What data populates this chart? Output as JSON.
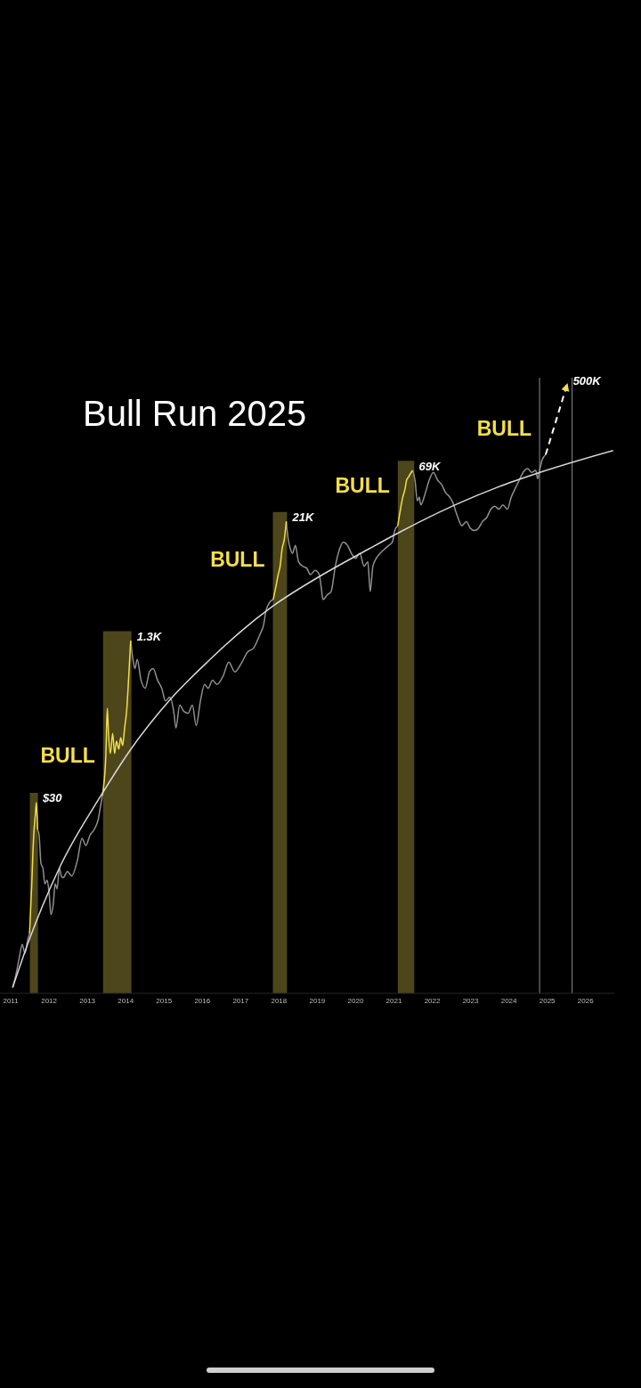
{
  "chart_data": {
    "type": "line",
    "title": "Bull Run 2025",
    "xlim": [
      2010.72,
      2026.75
    ],
    "xticks": [
      2011,
      2012,
      2013,
      2014,
      2015,
      2016,
      2017,
      2018,
      2019,
      2020,
      2021,
      2022,
      2023,
      2024,
      2025,
      2026
    ],
    "ylim": [
      0.35,
      600000
    ],
    "log": true,
    "tick_labels": "x",
    "series": [
      {
        "color": "#8f8f8f",
        "x": [
          2011.05,
          2011.14,
          2011.23,
          2011.3,
          2011.37,
          2011.44,
          2011.49,
          2011.6,
          2011.7,
          2011.74,
          2011.79,
          2011.84,
          2011.89,
          2011.95,
          2012,
          2012.05,
          2012.11,
          2012.16,
          2012.21,
          2012.27,
          2012.32,
          2012.37,
          2012.48,
          2012.59,
          2012.74,
          2012.86,
          2012.96,
          2013.07,
          2013.18,
          2013.28,
          2013.34,
          2013.39,
          2013.7,
          2014.13,
          2014.19,
          2014.24,
          2014.3,
          2014.4,
          2014.51,
          2014.62,
          2014.72,
          2014.83,
          2014.94,
          2015.04,
          2015.15,
          2015.26,
          2015.31,
          2015.41,
          2015.52,
          2015.63,
          2015.74,
          2015.84,
          2015.95,
          2016.06,
          2016.15,
          2016.27,
          2016.38,
          2016.54,
          2016.69,
          2016.85,
          2017.01,
          2017.18,
          2017.34,
          2017.5,
          2017.6,
          2017.66,
          2017.76,
          2017.85,
          2018,
          2018.19,
          2018.24,
          2018.3,
          2018.35,
          2018.43,
          2018.51,
          2018.62,
          2018.72,
          2018.82,
          2018.94,
          2019.05,
          2019.1,
          2019.15,
          2019.26,
          2019.36,
          2019.47,
          2019.58,
          2019.68,
          2019.79,
          2019.89,
          2020,
          2020.11,
          2020.22,
          2020.32,
          2020.38,
          2020.45,
          2020.54,
          2020.64,
          2020.75,
          2020.86,
          2020.96,
          2021.02,
          2021.1,
          2021.3,
          2021.49,
          2021.55,
          2021.61,
          2021.66,
          2021.7,
          2021.82,
          2021.92,
          2022.03,
          2022.14,
          2022.24,
          2022.35,
          2022.46,
          2022.56,
          2022.62,
          2022.67,
          2022.77,
          2022.89,
          2022.99,
          2023.1,
          2023.21,
          2023.31,
          2023.42,
          2023.53,
          2023.63,
          2023.74,
          2023.84,
          2023.96,
          2024.06,
          2024.16,
          2024.27,
          2024.37,
          2024.49,
          2024.59,
          2024.7,
          2024.75,
          2024.81,
          2024.86,
          2024.96
        ],
        "values": [
          0.4,
          0.55,
          0.83,
          1.1,
          0.89,
          1.2,
          1.4,
          null,
          16,
          14,
          7.2,
          6.5,
          4.5,
          4.9,
          3.7,
          2.2,
          2.8,
          4.5,
          4,
          6.5,
          5.4,
          5.2,
          6,
          5.4,
          7.8,
          13,
          11,
          14,
          16,
          20,
          27,
          35,
          null,
          1300,
          840,
          680,
          840,
          520,
          430,
          630,
          680,
          520,
          430,
          320,
          350,
          240,
          170,
          290,
          250,
          240,
          290,
          180,
          320,
          470,
          430,
          520,
          470,
          570,
          790,
          630,
          760,
          1000,
          1100,
          1500,
          1900,
          2600,
          3200,
          3400,
          null,
          21000,
          14000,
          11000,
          10000,
          12000,
          8200,
          7400,
          7100,
          6100,
          6700,
          6100,
          4600,
          3400,
          3800,
          4100,
          7400,
          11000,
          13000,
          12000,
          10000,
          8900,
          10000,
          7400,
          8200,
          4100,
          7400,
          8900,
          10000,
          11000,
          12000,
          13000,
          17000,
          19000,
          null,
          69000,
          55000,
          34000,
          37000,
          31000,
          41000,
          55000,
          66000,
          55000,
          50000,
          41000,
          37000,
          31000,
          26000,
          23000,
          19000,
          21000,
          18000,
          17000,
          18000,
          21000,
          23000,
          28000,
          30000,
          28000,
          31000,
          28000,
          37000,
          45000,
          55000,
          66000,
          72000,
          66000,
          69000,
          57000,
          72000,
          87000,
          100000
        ]
      },
      {
        "color": "#f3df4a",
        "x": [
          2011.49,
          2011.55,
          2011.58,
          2011.6,
          2011.64,
          2011.67,
          2011.7,
          2012.5,
          2013.39,
          2013.48,
          2013.52,
          2013.55,
          2013.6,
          2013.66,
          2013.71,
          2013.76,
          2013.82,
          2013.87,
          2013.92,
          2013.97,
          2014.03,
          2014.08,
          2014.13,
          2016,
          2017.85,
          2017.92,
          2017.98,
          2018.03,
          2018.08,
          2018.14,
          2018.19,
          2020,
          2021.1,
          2021.17,
          2021.23,
          2021.29,
          2021.33,
          2021.39,
          2021.45,
          2021.49
        ],
        "values": [
          1.4,
          4.5,
          9.6,
          14,
          22,
          30,
          16,
          null,
          35,
          85,
          270,
          150,
          94,
          150,
          94,
          125,
          104,
          136,
          113,
          167,
          270,
          570,
          1300,
          null,
          3400,
          4600,
          6100,
          7400,
          11000,
          14000,
          21000,
          null,
          19000,
          28000,
          37000,
          45000,
          55000,
          60000,
          66000,
          69000
        ],
        "value_labels": [
          null,
          null,
          null,
          null,
          null,
          "$30",
          null,
          null,
          null,
          null,
          null,
          null,
          null,
          null,
          null,
          null,
          null,
          null,
          null,
          null,
          null,
          null,
          "1.3K",
          null,
          null,
          null,
          null,
          null,
          null,
          null,
          "21K",
          null,
          null,
          null,
          null,
          null,
          null,
          null,
          null,
          "69K"
        ]
      },
      {
        "color": "#d9d9d9",
        "x": [
          2011.05,
          2011.51,
          2012.3,
          2013.37,
          2014.09,
          2015.16,
          2016.2,
          2016.99,
          2017.83,
          2019.08,
          2020.33,
          2021.1,
          2022.68,
          2023.72,
          2024.81,
          2026.72
        ],
        "values": [
          0.4,
          1.3,
          6.9,
          36,
          98,
          330,
          840,
          1600,
          2900,
          5900,
          11000,
          16000,
          32000,
          47000,
          66000,
          110000
        ]
      },
      {
        "color": "#ffffff",
        "line_style": "dashed",
        "x": [
          2024.96,
          2025.51
        ],
        "values": [
          100000,
          500000
        ],
        "value_labels": [
          null,
          "500K"
        ]
      }
    ],
    "bands": [
      {
        "axis": "x",
        "from": 2011.5,
        "to": 2011.71,
        "color": "#4d461b"
      },
      {
        "axis": "x",
        "from": 2013.41,
        "to": 2014.15,
        "color": "#4d461b",
        "label": "BULL"
      },
      {
        "axis": "x",
        "from": 2017.84,
        "to": 2018.21,
        "color": "#4d461b",
        "label": "BULL"
      },
      {
        "axis": "x",
        "from": 2021.1,
        "to": 2021.53,
        "color": "#4d461b",
        "label": "BULL"
      }
    ],
    "ref_lines": [
      {
        "axis": "x",
        "value": 2024.8,
        "color": "#8c8c8c",
        "label": "BULL"
      },
      {
        "axis": "x",
        "value": 2025.65,
        "color": "#8c8c8c"
      }
    ]
  }
}
